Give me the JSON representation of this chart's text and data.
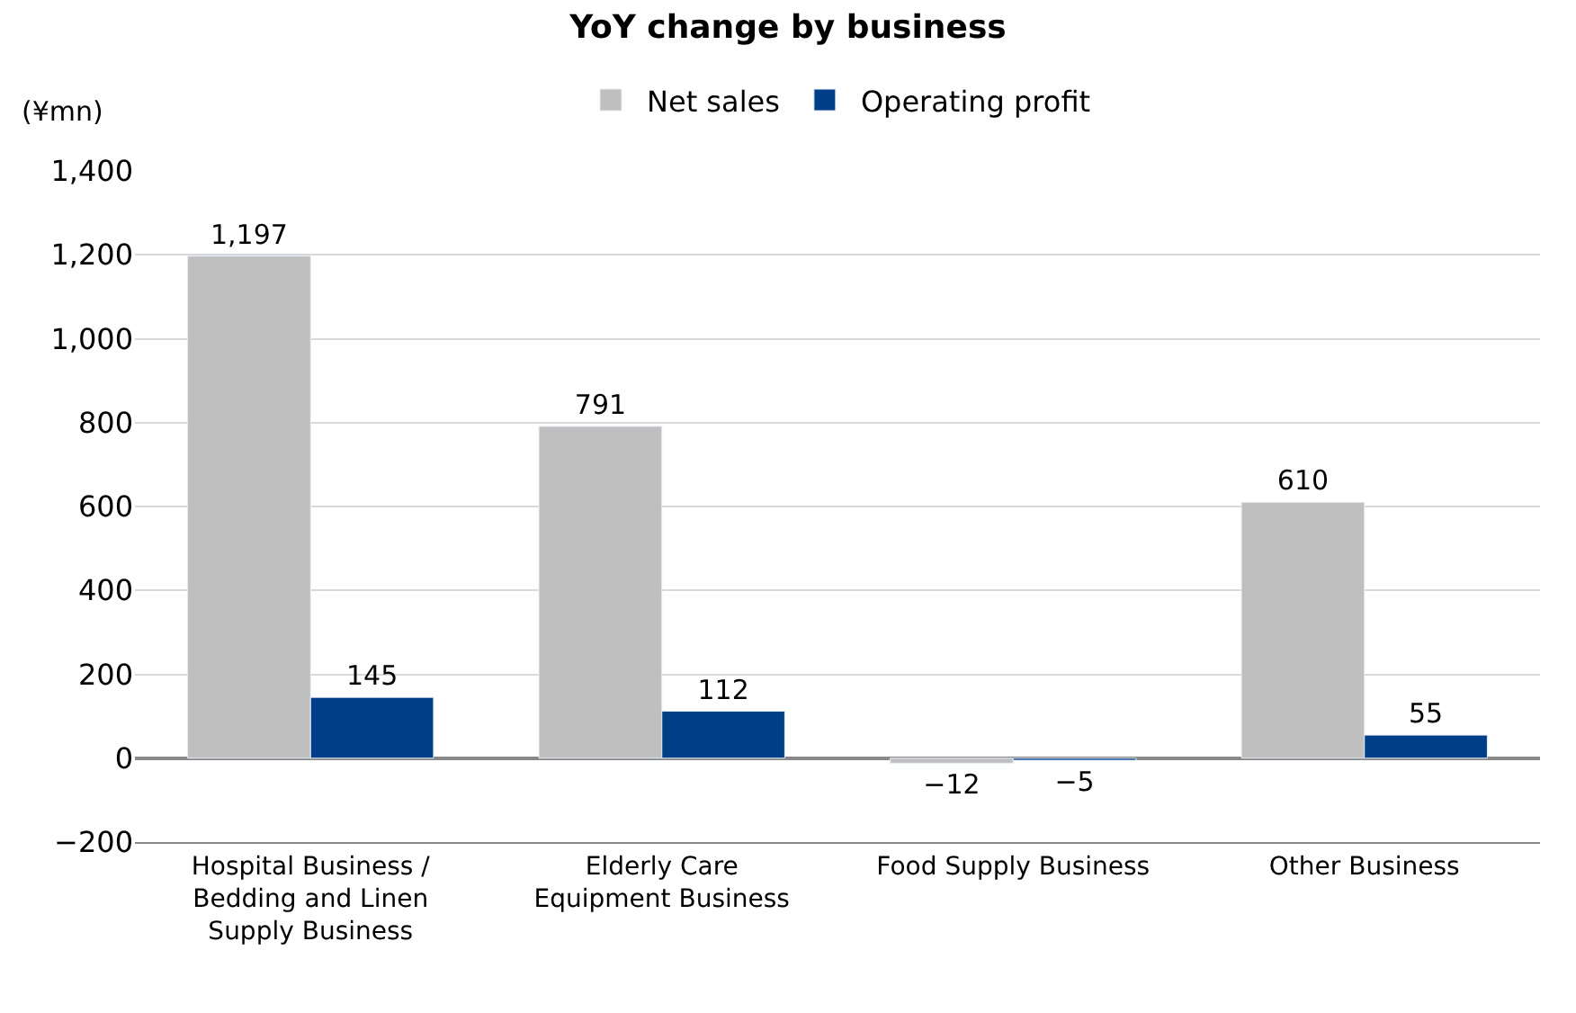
{
  "chart_data": {
    "type": "bar",
    "title": "YoY change by business",
    "ylabel": "(¥mn)",
    "categories": [
      "Hospital Business / Bedding and Linen Supply Business",
      "Elderly Care Equipment Business",
      "Food Supply Business",
      "Other Business"
    ],
    "series": [
      {
        "name": "Net sales",
        "color": "#bfbfbf",
        "values": [
          1197,
          791,
          -12,
          610
        ],
        "value_labels": [
          "1,197",
          "791",
          "−12",
          "610"
        ]
      },
      {
        "name": "Operating profit",
        "color": "#003f87",
        "values": [
          145,
          112,
          -5,
          55
        ],
        "value_labels": [
          "145",
          "112",
          "−5",
          "55"
        ]
      }
    ],
    "ylim": [
      -200,
      1400
    ],
    "yticks": [
      {
        "value": -200,
        "label": "−200"
      },
      0,
      200,
      400,
      600,
      800,
      {
        "value": 1000,
        "label": "1,000"
      },
      {
        "value": 1200,
        "label": "1,200"
      },
      {
        "value": 1400,
        "label": "1,400"
      }
    ],
    "grid": "y",
    "legend": "top"
  }
}
